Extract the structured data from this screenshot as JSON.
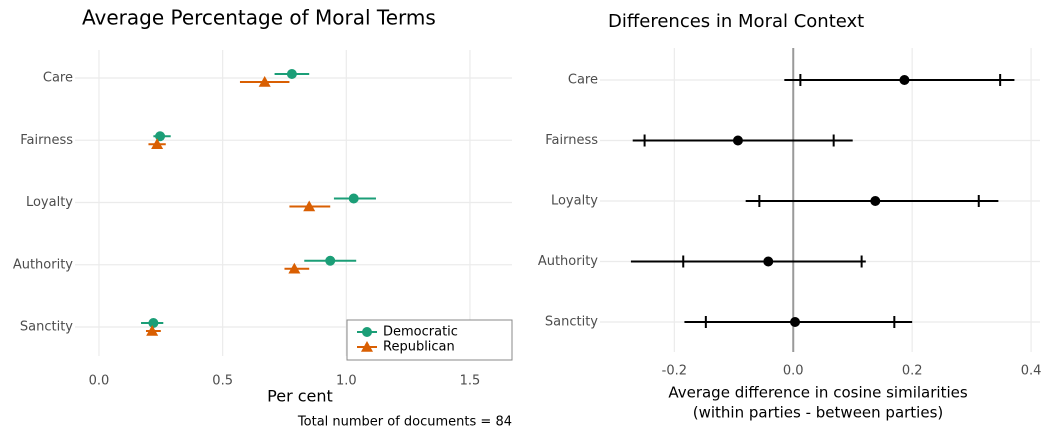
{
  "chart_data": [
    {
      "type": "dot_errorbar",
      "title": "Average Percentage of Moral Terms",
      "xlabel": [
        "Per cent"
      ],
      "note": "Total number of documents = 84",
      "categories": [
        "Care",
        "Fairness",
        "Loyalty",
        "Authority",
        "Sanctity"
      ],
      "xlim": [
        -0.097,
        1.67
      ],
      "xticks": [
        {
          "value": 0,
          "label": "0.0"
        },
        0.5,
        {
          "value": 1,
          "label": "1.0"
        },
        1.5
      ],
      "grid": true,
      "legend": "bottom-right",
      "series": [
        {
          "name": "Democratic",
          "color": "#1b9e77",
          "marker": "circle",
          "values": [
            0.78,
            0.247,
            1.03,
            0.935,
            0.22
          ],
          "lower": [
            0.71,
            0.22,
            0.95,
            0.83,
            0.17
          ],
          "upper": [
            0.85,
            0.29,
            1.12,
            1.04,
            0.26
          ]
        },
        {
          "name": "Republican",
          "color": "#d95f02",
          "marker": "triangle",
          "values": [
            0.67,
            0.235,
            0.85,
            0.79,
            0.215
          ],
          "lower": [
            0.57,
            0.2,
            0.77,
            0.75,
            0.19
          ],
          "upper": [
            0.77,
            0.27,
            0.935,
            0.85,
            0.25
          ]
        }
      ]
    },
    {
      "type": "dot_errorbar",
      "title": "Differences in Moral Context",
      "xlabel": [
        "Average difference in cosine similarities",
        "(within parties - between parties)"
      ],
      "categories": [
        "Care",
        "Fairness",
        "Loyalty",
        "Authority",
        "Sanctity"
      ],
      "xlim": [
        -0.325,
        0.415
      ],
      "xticks": [
        -0.2,
        {
          "value": 0,
          "label": "0.0"
        },
        0.2,
        0.4
      ],
      "grid": true,
      "zero_line": true,
      "series": [
        {
          "color": "#000000",
          "marker": "circle",
          "values": [
            0.187,
            -0.093,
            0.138,
            -0.042,
            0.003
          ],
          "lower": [
            -0.015,
            -0.27,
            -0.08,
            -0.273,
            -0.183
          ],
          "upper": [
            0.372,
            0.1,
            0.345,
            0.122,
            0.2
          ],
          "inner_lower": [
            0.012,
            -0.25,
            -0.057,
            -0.185,
            -0.147
          ],
          "inner_upper": [
            0.348,
            0.068,
            0.312,
            0.115,
            0.17
          ]
        }
      ]
    }
  ]
}
